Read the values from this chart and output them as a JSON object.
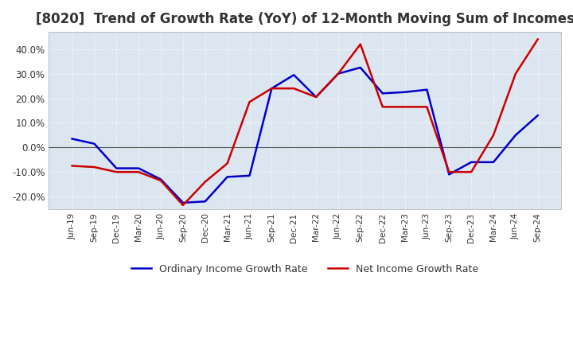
{
  "title": "[8020]  Trend of Growth Rate (YoY) of 12-Month Moving Sum of Incomes",
  "title_fontsize": 12,
  "background_color": "#dce6f0",
  "plot_bg_color": "#dce6f0",
  "grid_color": "#ffffff",
  "ylim": [
    -25,
    47
  ],
  "yticks": [
    -20,
    -10,
    0,
    10,
    20,
    30,
    40
  ],
  "x_labels": [
    "Jun-19",
    "Sep-19",
    "Dec-19",
    "Mar-20",
    "Jun-20",
    "Sep-20",
    "Dec-20",
    "Mar-21",
    "Jun-21",
    "Sep-21",
    "Dec-21",
    "Mar-22",
    "Jun-22",
    "Sep-22",
    "Dec-22",
    "Mar-23",
    "Jun-23",
    "Sep-23",
    "Dec-23",
    "Mar-24",
    "Jun-24",
    "Sep-24"
  ],
  "ordinary_income": [
    3.5,
    1.5,
    -8.5,
    -8.5,
    -13.0,
    -22.5,
    -22.0,
    -12.0,
    -11.5,
    24.0,
    29.5,
    20.5,
    30.0,
    32.5,
    22.0,
    22.5,
    23.5,
    -11.0,
    -6.0,
    -6.0,
    5.0,
    13.0
  ],
  "net_income": [
    -7.5,
    -8.0,
    -10.0,
    -10.0,
    -13.5,
    -23.5,
    -14.0,
    -6.5,
    18.5,
    24.0,
    24.0,
    20.5,
    30.0,
    42.0,
    16.5,
    16.5,
    16.5,
    -10.0,
    -10.0,
    5.0,
    30.0,
    44.0
  ],
  "ordinary_color": "#0000cc",
  "net_color": "#cc0000",
  "line_width": 1.8,
  "zero_line_color": "#555555",
  "legend_labels": [
    "Ordinary Income Growth Rate",
    "Net Income Growth Rate"
  ]
}
